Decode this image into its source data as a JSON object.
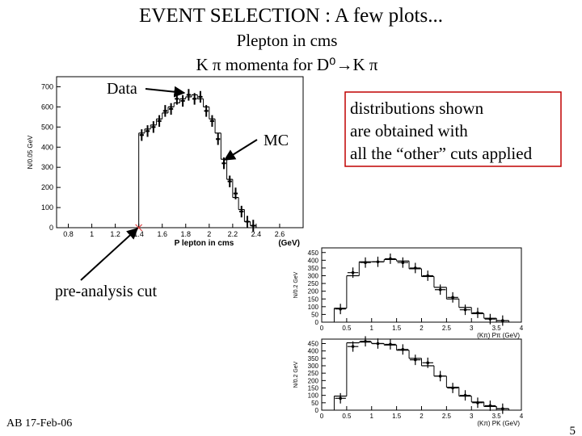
{
  "title": "EVENT SELECTION : A few plots...",
  "subtitle": "Plepton in cms",
  "subtitle2": "K π momenta for D⁰→K π",
  "annotation_cut": "pre-analysis cut",
  "note_lines": [
    "distributions shown",
    "are obtained with",
    "all the “other” cuts applied"
  ],
  "footer": "AB 17-Feb-06",
  "page_number": "5",
  "chart_data": [
    {
      "type": "histogram",
      "xlabel": "P lepton in cms",
      "xunit": "(GeV)",
      "ylabel": "N/0.05 GeV",
      "xlim": [
        0.7,
        2.8
      ],
      "ylim": [
        0,
        750
      ],
      "xticks": [
        0.8,
        1,
        1.2,
        1.4,
        1.6,
        1.8,
        2,
        2.2,
        2.4,
        2.6
      ],
      "yticks": [
        0,
        100,
        200,
        300,
        400,
        500,
        600,
        700
      ],
      "bins": [
        1.4,
        1.45,
        1.5,
        1.55,
        1.6,
        1.65,
        1.7,
        1.75,
        1.8,
        1.85,
        1.9,
        1.95,
        2,
        2.05,
        2.1,
        2.15,
        2.2,
        2.25,
        2.3,
        2.35,
        2.4
      ],
      "series": [
        {
          "name": "MC",
          "color": "#000000",
          "values": [
            470,
            490,
            510,
            540,
            570,
            600,
            620,
            640,
            650,
            660,
            640,
            600,
            540,
            470,
            340,
            240,
            150,
            90,
            30,
            10
          ]
        },
        {
          "name": "Data",
          "color": "#000000",
          "values": [
            460,
            480,
            500,
            530,
            580,
            590,
            640,
            630,
            660,
            640,
            650,
            580,
            530,
            440,
            320,
            230,
            170,
            80,
            30,
            10
          ]
        }
      ]
    },
    {
      "type": "histogram",
      "xlabel": "(Kπ)  Pπ (GeV)",
      "ylabel": "N/0.2 GeV",
      "xlim": [
        0,
        4
      ],
      "ylim": [
        0,
        480
      ],
      "xticks": [
        0,
        0.5,
        1,
        1.5,
        2,
        2.5,
        3,
        3.5,
        4
      ],
      "yticks": [
        0,
        50,
        100,
        150,
        200,
        250,
        300,
        350,
        400,
        450
      ],
      "bins": [
        0.25,
        0.5,
        0.75,
        1,
        1.25,
        1.5,
        1.75,
        2,
        2.25,
        2.5,
        2.75,
        3,
        3.25,
        3.5,
        3.75
      ],
      "series": [
        {
          "color": "#000000",
          "values": [
            90,
            300,
            390,
            390,
            405,
            395,
            345,
            295,
            225,
            150,
            95,
            55,
            25,
            10
          ]
        },
        {
          "color": "#000000",
          "values": [
            85,
            320,
            385,
            390,
            410,
            385,
            350,
            300,
            210,
            160,
            80,
            60,
            20,
            10
          ]
        }
      ]
    },
    {
      "type": "histogram",
      "xlabel": "(Kπ)  PK (GeV)",
      "ylabel": "N/0.2 GeV",
      "xlim": [
        0,
        4
      ],
      "ylim": [
        0,
        480
      ],
      "xticks": [
        0,
        0.5,
        1,
        1.5,
        2,
        2.5,
        3,
        3.5,
        4
      ],
      "yticks": [
        0,
        50,
        100,
        150,
        200,
        250,
        300,
        350,
        400,
        450
      ],
      "bins": [
        0.25,
        0.5,
        0.75,
        1,
        1.25,
        1.5,
        1.75,
        2,
        2.25,
        2.5,
        2.75,
        3,
        3.25,
        3.5,
        3.75
      ],
      "series": [
        {
          "color": "#000000",
          "values": [
            95,
            455,
            460,
            450,
            440,
            405,
            350,
            300,
            230,
            155,
            95,
            55,
            25,
            10
          ]
        },
        {
          "color": "#000000",
          "values": [
            80,
            430,
            465,
            450,
            445,
            410,
            340,
            320,
            230,
            150,
            100,
            50,
            30,
            10
          ]
        }
      ]
    }
  ]
}
